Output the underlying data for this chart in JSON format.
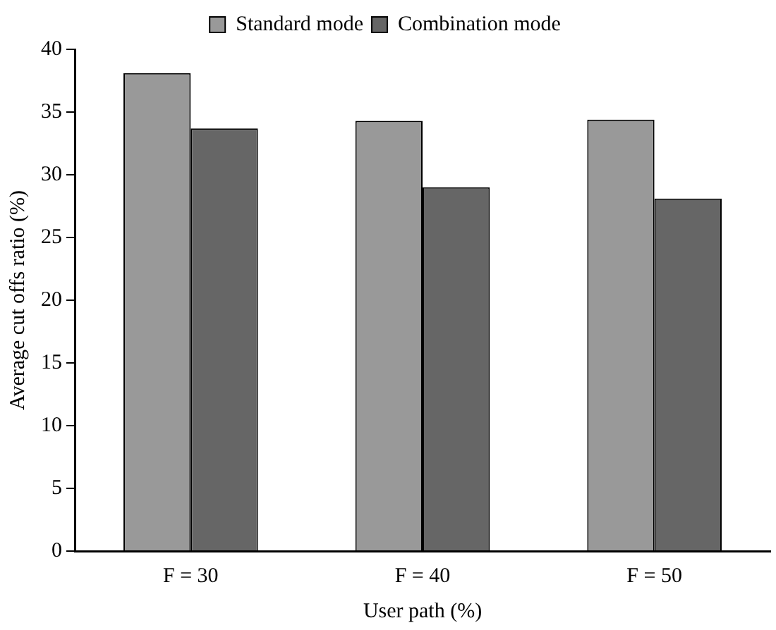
{
  "chart_data": {
    "type": "bar",
    "xlabel": "User path (%)",
    "ylabel": "Average cut offs ratio (%)",
    "categories": [
      "F = 30",
      "F = 40",
      "F = 50"
    ],
    "series": [
      {
        "name": "Standard mode",
        "color": "#999999",
        "values": [
          38.1,
          34.3,
          34.4
        ]
      },
      {
        "name": "Combination mode",
        "color": "#666666",
        "values": [
          33.7,
          29.0,
          28.1
        ]
      }
    ],
    "ylim": [
      0,
      40
    ],
    "yticks": [
      0,
      5,
      10,
      15,
      20,
      25,
      30,
      35,
      40
    ],
    "grid": false,
    "legend": "top"
  }
}
